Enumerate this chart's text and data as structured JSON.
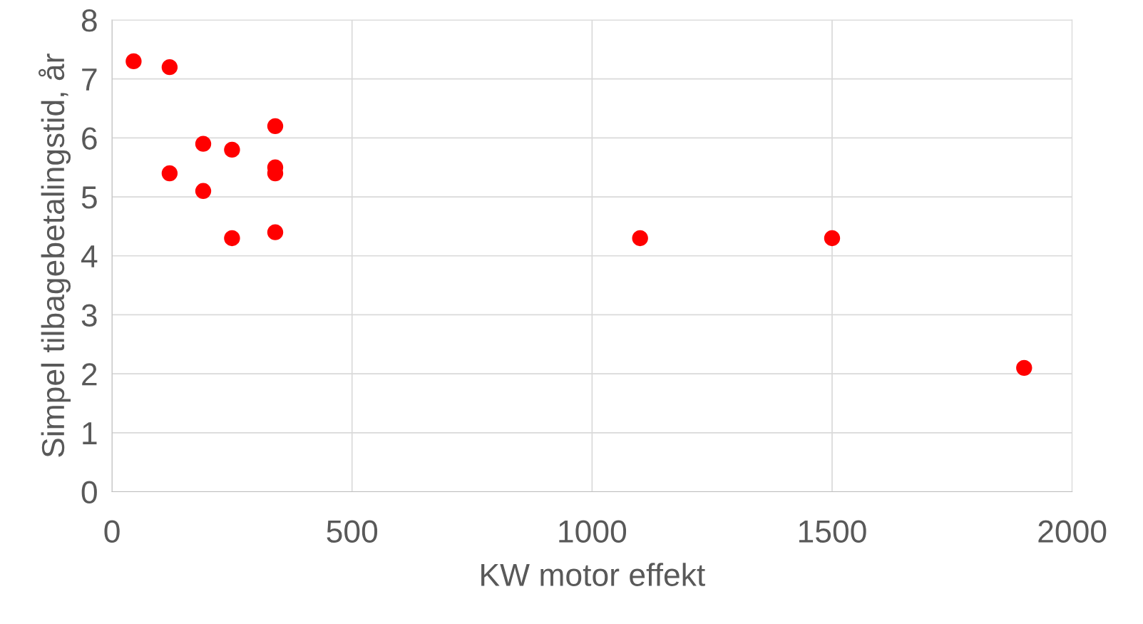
{
  "chart_data": {
    "type": "scatter",
    "xlabel": "KW motor effekt",
    "ylabel": "Simpel tilbagebetalingstid, år",
    "series": [
      {
        "color": "#ff0000",
        "x": [
          45,
          120,
          120,
          190,
          190,
          250,
          250,
          340,
          340,
          340,
          340,
          1100,
          1500,
          1900
        ],
        "values": [
          7.3,
          7.2,
          5.4,
          5.9,
          5.1,
          5.8,
          4.3,
          6.2,
          5.5,
          5.4,
          4.4,
          4.3,
          4.3,
          2.1
        ]
      }
    ],
    "xlim": [
      0,
      2000
    ],
    "xticks": [
      0,
      500,
      1000,
      1500,
      2000
    ],
    "ylim": [
      0,
      8
    ],
    "yticks": [
      0,
      1,
      2,
      3,
      4,
      5,
      6,
      7,
      8
    ],
    "grid": true,
    "marker": "circle",
    "legend": false
  }
}
